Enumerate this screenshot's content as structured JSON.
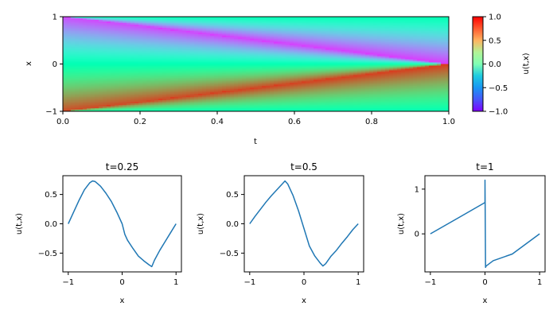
{
  "chart_data": [
    {
      "type": "heatmap",
      "title": "",
      "xlabel": "t",
      "ylabel": "x",
      "xlim": [
        0,
        1
      ],
      "ylim": [
        -1,
        1
      ],
      "xticks": [
        "0.0",
        "0.2",
        "0.4",
        "0.6",
        "0.8",
        "1.0"
      ],
      "yticks": [
        "−1",
        "0",
        "1"
      ],
      "colorbar": {
        "label": "u(t,x)",
        "range": [
          -1,
          1
        ],
        "ticks": [
          "−1.0",
          "−0.5",
          "0.0",
          "0.5",
          "1.0"
        ],
        "colormap": "rainbow"
      },
      "grid": false
    },
    {
      "type": "line",
      "title": "t=0.25",
      "xlabel": "x",
      "ylabel": "u(t,x)",
      "xlim": [
        -1.1,
        1.1
      ],
      "ylim": [
        -0.82,
        0.82
      ],
      "xticks": [
        "−1",
        "0",
        "1"
      ],
      "yticks": [
        "0.5",
        "0.0",
        "−0.5"
      ],
      "line_color": "#1f77b4",
      "x": [
        -1.0,
        -0.9,
        -0.8,
        -0.7,
        -0.6,
        -0.55,
        -0.5,
        -0.45,
        -0.4,
        -0.3,
        -0.2,
        -0.1,
        0.0,
        0.05,
        0.1,
        0.2,
        0.3,
        0.4,
        0.5,
        0.55,
        0.6,
        0.7,
        0.8,
        0.9,
        1.0
      ],
      "y": [
        0.0,
        0.2,
        0.4,
        0.58,
        0.7,
        0.73,
        0.72,
        0.68,
        0.64,
        0.52,
        0.38,
        0.2,
        0.0,
        -0.18,
        -0.28,
        -0.42,
        -0.55,
        -0.63,
        -0.7,
        -0.73,
        -0.62,
        -0.45,
        -0.3,
        -0.15,
        0.0
      ],
      "grid": false
    },
    {
      "type": "line",
      "title": "t=0.5",
      "xlabel": "x",
      "ylabel": "u(t,x)",
      "xlim": [
        -1.1,
        1.1
      ],
      "ylim": [
        -0.82,
        0.82
      ],
      "xticks": [
        "−1",
        "0",
        "1"
      ],
      "yticks": [
        "0.5",
        "0.0",
        "−0.5"
      ],
      "line_color": "#1f77b4",
      "x": [
        -1.0,
        -0.9,
        -0.8,
        -0.7,
        -0.6,
        -0.5,
        -0.4,
        -0.35,
        -0.3,
        -0.2,
        -0.1,
        0.0,
        0.1,
        0.2,
        0.3,
        0.35,
        0.4,
        0.5,
        0.6,
        0.7,
        0.8,
        0.9,
        1.0
      ],
      "y": [
        0.0,
        0.13,
        0.25,
        0.37,
        0.48,
        0.58,
        0.68,
        0.73,
        0.68,
        0.48,
        0.22,
        -0.08,
        -0.38,
        -0.55,
        -0.67,
        -0.72,
        -0.68,
        -0.55,
        -0.45,
        -0.33,
        -0.22,
        -0.1,
        0.0
      ],
      "grid": false
    },
    {
      "type": "line",
      "title": "t=1",
      "xlabel": "x",
      "ylabel": "u(t,x)",
      "xlim": [
        -1.1,
        1.1
      ],
      "ylim": [
        -0.85,
        1.3
      ],
      "xticks": [
        "−1",
        "0",
        "1"
      ],
      "yticks": [
        "1",
        "0"
      ],
      "line_color": "#1f77b4",
      "x": [
        -1.0,
        -0.5,
        0.0,
        0.0,
        0.0,
        0.01,
        0.02,
        0.15,
        0.5,
        1.0
      ],
      "y": [
        0.0,
        0.35,
        0.7,
        0.75,
        1.2,
        -0.75,
        -0.72,
        -0.6,
        -0.45,
        0.0
      ],
      "grid": false
    }
  ]
}
